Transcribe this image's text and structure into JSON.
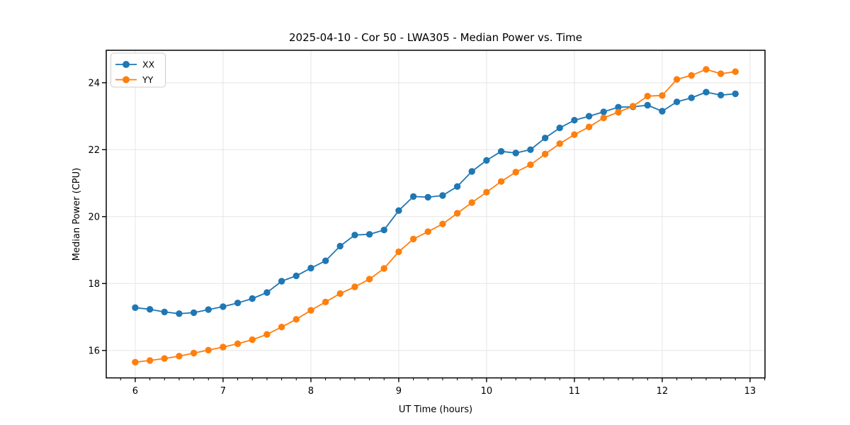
{
  "chart_data": {
    "type": "line",
    "title": "2025-04-10 - Cor 50 - LWA305 - Median Power vs. Time",
    "xlabel": "UT Time (hours)",
    "ylabel": "Median Power (CPU)",
    "xlim": [
      5.67,
      13.17
    ],
    "ylim": [
      15.18,
      24.97
    ],
    "x_ticks": [
      6,
      7,
      8,
      9,
      10,
      11,
      12,
      13
    ],
    "y_ticks": [
      16,
      18,
      20,
      22,
      24
    ],
    "x_minor_step_hours": 0.1667,
    "grid": true,
    "legend_position": "upper left",
    "x": [
      6.0,
      6.167,
      6.333,
      6.5,
      6.667,
      6.833,
      7.0,
      7.167,
      7.333,
      7.5,
      7.667,
      7.833,
      8.0,
      8.167,
      8.333,
      8.5,
      8.667,
      8.833,
      9.0,
      9.167,
      9.333,
      9.5,
      9.667,
      9.833,
      10.0,
      10.167,
      10.333,
      10.5,
      10.667,
      10.833,
      11.0,
      11.167,
      11.333,
      11.5,
      11.667,
      11.833,
      12.0,
      12.167,
      12.333,
      12.5,
      12.667,
      12.833
    ],
    "series": [
      {
        "name": "XX",
        "color": "#1f77b4",
        "marker": "circle",
        "values": [
          17.28,
          17.23,
          17.15,
          17.1,
          17.13,
          17.22,
          17.31,
          17.42,
          17.55,
          17.73,
          18.07,
          18.23,
          18.46,
          18.68,
          19.12,
          19.45,
          19.47,
          19.6,
          20.18,
          20.6,
          20.58,
          20.63,
          20.9,
          21.35,
          21.68,
          21.95,
          21.9,
          22.0,
          22.35,
          22.65,
          22.88,
          23.0,
          23.13,
          23.27,
          23.28,
          23.33,
          23.15,
          23.43,
          23.55,
          23.72,
          23.63,
          23.67
        ]
      },
      {
        "name": "YY",
        "color": "#ff7f0e",
        "marker": "circle",
        "values": [
          15.65,
          15.7,
          15.76,
          15.83,
          15.92,
          16.01,
          16.1,
          16.2,
          16.32,
          16.48,
          16.7,
          16.93,
          17.2,
          17.45,
          17.7,
          17.9,
          18.13,
          18.45,
          18.95,
          19.33,
          19.55,
          19.78,
          20.1,
          20.42,
          20.73,
          21.05,
          21.33,
          21.55,
          21.87,
          22.18,
          22.45,
          22.68,
          22.95,
          23.12,
          23.3,
          23.6,
          23.62,
          24.1,
          24.22,
          24.4,
          24.27,
          24.33
        ]
      }
    ]
  },
  "colors": {
    "background": "#ffffff",
    "grid": "#e5e5e5",
    "spine": "#000000",
    "text": "#000000",
    "legend_border": "#cccccc",
    "series_xx": "#1f77b4",
    "series_yy": "#ff7f0e"
  }
}
